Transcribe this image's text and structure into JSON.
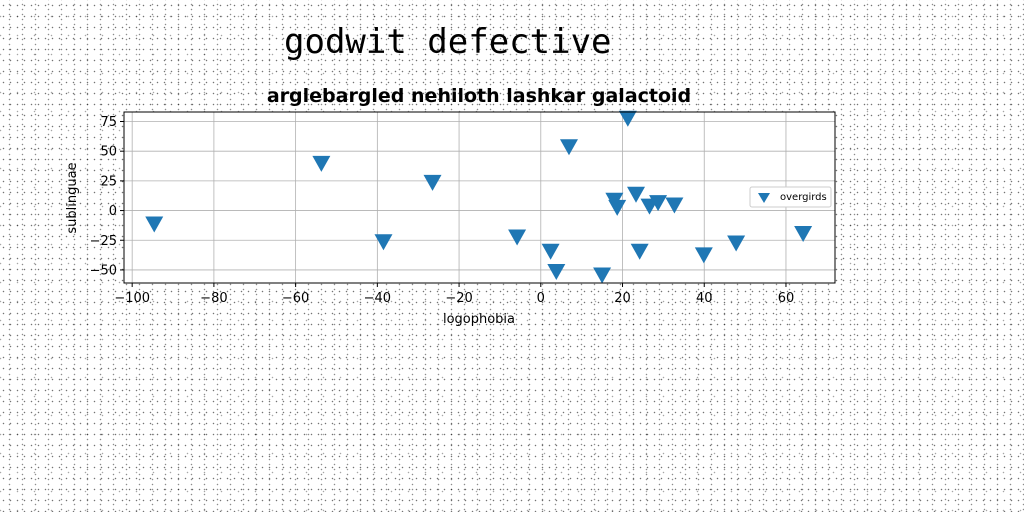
{
  "page_title": "godwit defective",
  "colors": {
    "marker": "#1f77b4",
    "grid": "#b0b0b0",
    "axis": "#000000"
  },
  "chart_data": {
    "type": "scatter",
    "title": "arglebargled nehiloth lashkar galactoid",
    "xlabel": "logophobia",
    "ylabel": "sublinguae",
    "xlim": [
      -102,
      72
    ],
    "ylim": [
      -61,
      83
    ],
    "xticks": [
      -100,
      -80,
      -60,
      -40,
      -20,
      0,
      20,
      40,
      60
    ],
    "yticks": [
      -50,
      -25,
      0,
      25,
      50,
      75
    ],
    "grid": true,
    "legend_position": "center-right",
    "series": [
      {
        "name": "overgirds",
        "marker": "triangle-down",
        "x": [
          -94.6,
          -53.7,
          -38.5,
          -26.5,
          -5.8,
          2.4,
          3.8,
          6.9,
          15,
          18,
          18.7,
          21.3,
          23.3,
          24.2,
          26.6,
          28.7,
          32.7,
          39.9,
          47.8,
          64.2
        ],
        "y": [
          -10,
          41,
          -25,
          25,
          -21,
          -33,
          -50,
          55,
          -53,
          10,
          4,
          79,
          15,
          -33,
          5,
          8,
          6,
          -36,
          -26,
          -18
        ]
      }
    ]
  }
}
